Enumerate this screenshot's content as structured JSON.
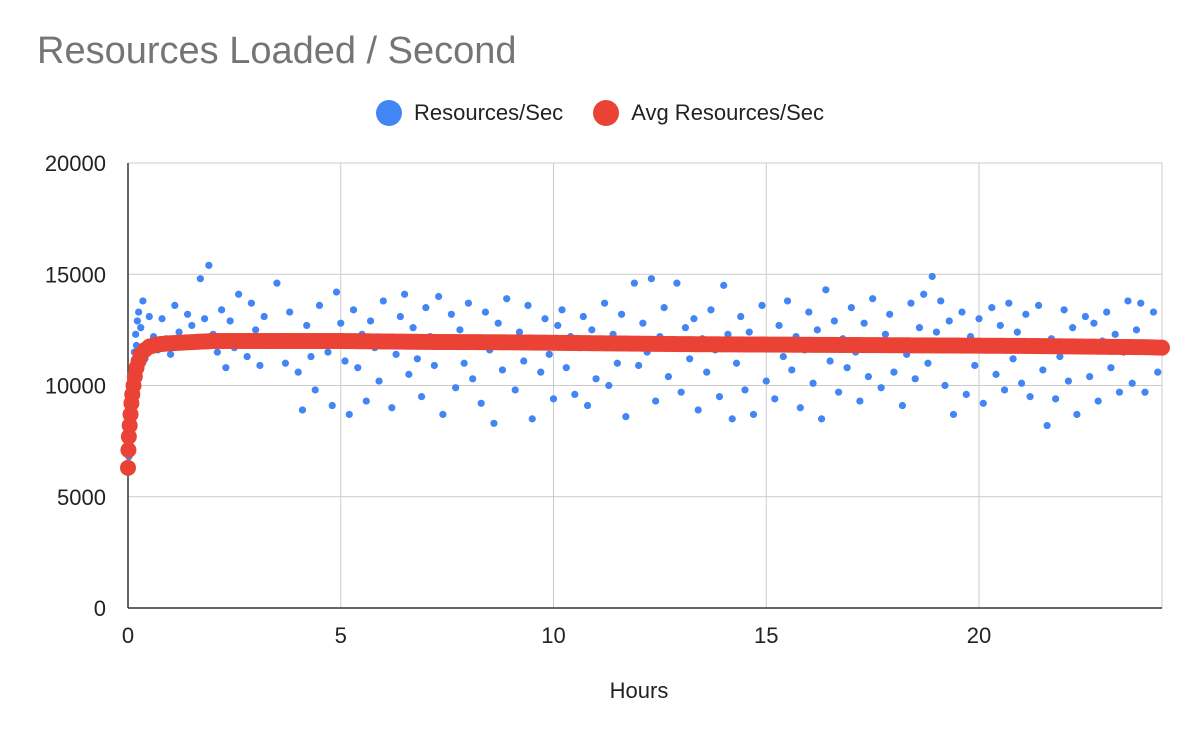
{
  "chart_data": {
    "type": "scatter",
    "title": "Resources Loaded / Second",
    "xlabel": "Hours",
    "ylabel": "",
    "xlim": [
      0,
      24.3
    ],
    "ylim": [
      0,
      20000
    ],
    "x_ticks": [
      0,
      5,
      10,
      15,
      20
    ],
    "y_ticks": [
      0,
      5000,
      10000,
      15000,
      20000
    ],
    "grid": true,
    "legend_position": "top",
    "series": [
      {
        "name": "Resources/Sec",
        "color": "#4285F4",
        "points": [
          [
            0.02,
            6800
          ],
          [
            0.05,
            8200
          ],
          [
            0.08,
            8900
          ],
          [
            0.1,
            9800
          ],
          [
            0.12,
            10400
          ],
          [
            0.15,
            11500
          ],
          [
            0.18,
            12300
          ],
          [
            0.2,
            11800
          ],
          [
            0.22,
            12900
          ],
          [
            0.25,
            13300
          ],
          [
            0.3,
            12600
          ],
          [
            0.35,
            13800
          ],
          [
            0.4,
            11200
          ],
          [
            0.5,
            13100
          ],
          [
            0.6,
            12200
          ],
          [
            0.7,
            11600
          ],
          [
            0.8,
            13000
          ],
          [
            0.9,
            12100
          ],
          [
            1.0,
            11400
          ],
          [
            1.1,
            13600
          ],
          [
            1.2,
            12400
          ],
          [
            1.3,
            11900
          ],
          [
            1.4,
            13200
          ],
          [
            1.5,
            12700
          ],
          [
            1.6,
            11800
          ],
          [
            1.7,
            14800
          ],
          [
            1.8,
            13000
          ],
          [
            1.9,
            15400
          ],
          [
            2.0,
            12300
          ],
          [
            2.1,
            11500
          ],
          [
            2.2,
            13400
          ],
          [
            2.3,
            10800
          ],
          [
            2.4,
            12900
          ],
          [
            2.5,
            11700
          ],
          [
            2.6,
            14100
          ],
          [
            2.7,
            12000
          ],
          [
            2.8,
            11300
          ],
          [
            2.9,
            13700
          ],
          [
            3.0,
            12500
          ],
          [
            3.1,
            10900
          ],
          [
            3.2,
            13100
          ],
          [
            3.3,
            11800
          ],
          [
            3.5,
            14600
          ],
          [
            3.6,
            12200
          ],
          [
            3.7,
            11000
          ],
          [
            3.8,
            13300
          ],
          [
            3.9,
            12000
          ],
          [
            4.0,
            10600
          ],
          [
            4.1,
            8900
          ],
          [
            4.2,
            12700
          ],
          [
            4.3,
            11300
          ],
          [
            4.4,
            9800
          ],
          [
            4.5,
            13600
          ],
          [
            4.6,
            12100
          ],
          [
            4.7,
            11500
          ],
          [
            4.8,
            9100
          ],
          [
            4.9,
            14200
          ],
          [
            5.0,
            12800
          ],
          [
            5.1,
            11100
          ],
          [
            5.2,
            8700
          ],
          [
            5.3,
            13400
          ],
          [
            5.4,
            10800
          ],
          [
            5.5,
            12300
          ],
          [
            5.6,
            9300
          ],
          [
            5.7,
            12900
          ],
          [
            5.8,
            11700
          ],
          [
            5.9,
            10200
          ],
          [
            6.0,
            13800
          ],
          [
            6.1,
            12000
          ],
          [
            6.2,
            9000
          ],
          [
            6.3,
            11400
          ],
          [
            6.4,
            13100
          ],
          [
            6.5,
            14100
          ],
          [
            6.6,
            10500
          ],
          [
            6.7,
            12600
          ],
          [
            6.8,
            11200
          ],
          [
            6.9,
            9500
          ],
          [
            7.0,
            13500
          ],
          [
            7.1,
            12200
          ],
          [
            7.2,
            10900
          ],
          [
            7.3,
            14000
          ],
          [
            7.4,
            8700
          ],
          [
            7.5,
            11800
          ],
          [
            7.6,
            13200
          ],
          [
            7.7,
            9900
          ],
          [
            7.8,
            12500
          ],
          [
            7.9,
            11000
          ],
          [
            8.0,
            13700
          ],
          [
            8.1,
            10300
          ],
          [
            8.2,
            12100
          ],
          [
            8.3,
            9200
          ],
          [
            8.4,
            13300
          ],
          [
            8.5,
            11600
          ],
          [
            8.6,
            8300
          ],
          [
            8.7,
            12800
          ],
          [
            8.8,
            10700
          ],
          [
            8.9,
            13900
          ],
          [
            9.0,
            11900
          ],
          [
            9.1,
            9800
          ],
          [
            9.2,
            12400
          ],
          [
            9.3,
            11100
          ],
          [
            9.4,
            13600
          ],
          [
            9.5,
            8500
          ],
          [
            9.6,
            12000
          ],
          [
            9.7,
            10600
          ],
          [
            9.8,
            13000
          ],
          [
            9.9,
            11400
          ],
          [
            10.0,
            9400
          ],
          [
            10.1,
            12700
          ],
          [
            10.2,
            13400
          ],
          [
            10.3,
            10800
          ],
          [
            10.4,
            12200
          ],
          [
            10.5,
            9600
          ],
          [
            10.6,
            11700
          ],
          [
            10.7,
            13100
          ],
          [
            10.8,
            9100
          ],
          [
            10.9,
            12500
          ],
          [
            11.0,
            10300
          ],
          [
            11.1,
            11900
          ],
          [
            11.2,
            13700
          ],
          [
            11.3,
            10000
          ],
          [
            11.4,
            12300
          ],
          [
            11.5,
            11000
          ],
          [
            11.6,
            13200
          ],
          [
            11.7,
            8600
          ],
          [
            11.8,
            12000
          ],
          [
            11.9,
            14600
          ],
          [
            12.0,
            10900
          ],
          [
            12.1,
            12800
          ],
          [
            12.2,
            11500
          ],
          [
            12.3,
            14800
          ],
          [
            12.4,
            9300
          ],
          [
            12.5,
            12200
          ],
          [
            12.6,
            13500
          ],
          [
            12.7,
            10400
          ],
          [
            12.8,
            11800
          ],
          [
            12.9,
            14600
          ],
          [
            13.0,
            9700
          ],
          [
            13.1,
            12600
          ],
          [
            13.2,
            11200
          ],
          [
            13.3,
            13000
          ],
          [
            13.4,
            8900
          ],
          [
            13.5,
            12100
          ],
          [
            13.6,
            10600
          ],
          [
            13.7,
            13400
          ],
          [
            13.8,
            11600
          ],
          [
            13.9,
            9500
          ],
          [
            14.0,
            14500
          ],
          [
            14.1,
            12300
          ],
          [
            14.2,
            8500
          ],
          [
            14.3,
            11000
          ],
          [
            14.4,
            13100
          ],
          [
            14.5,
            9800
          ],
          [
            14.6,
            12400
          ],
          [
            14.7,
            8700
          ],
          [
            14.8,
            11800
          ],
          [
            14.9,
            13600
          ],
          [
            15.0,
            10200
          ],
          [
            15.1,
            12000
          ],
          [
            15.2,
            9400
          ],
          [
            15.3,
            12700
          ],
          [
            15.4,
            11300
          ],
          [
            15.5,
            13800
          ],
          [
            15.6,
            10700
          ],
          [
            15.7,
            12200
          ],
          [
            15.8,
            9000
          ],
          [
            15.9,
            11600
          ],
          [
            16.0,
            13300
          ],
          [
            16.1,
            10100
          ],
          [
            16.2,
            12500
          ],
          [
            16.3,
            8500
          ],
          [
            16.4,
            14300
          ],
          [
            16.5,
            11100
          ],
          [
            16.6,
            12900
          ],
          [
            16.7,
            9700
          ],
          [
            16.8,
            12100
          ],
          [
            16.9,
            10800
          ],
          [
            17.0,
            13500
          ],
          [
            17.1,
            11500
          ],
          [
            17.2,
            9300
          ],
          [
            17.3,
            12800
          ],
          [
            17.4,
            10400
          ],
          [
            17.5,
            13900
          ],
          [
            17.6,
            11900
          ],
          [
            17.7,
            9900
          ],
          [
            17.8,
            12300
          ],
          [
            17.9,
            13200
          ],
          [
            18.0,
            10600
          ],
          [
            18.1,
            12000
          ],
          [
            18.2,
            9100
          ],
          [
            18.3,
            11400
          ],
          [
            18.4,
            13700
          ],
          [
            18.5,
            10300
          ],
          [
            18.6,
            12600
          ],
          [
            18.7,
            14100
          ],
          [
            18.8,
            11000
          ],
          [
            18.9,
            14900
          ],
          [
            19.0,
            12400
          ],
          [
            19.1,
            13800
          ],
          [
            19.2,
            10000
          ],
          [
            19.3,
            12900
          ],
          [
            19.4,
            8700
          ],
          [
            19.5,
            11700
          ],
          [
            19.6,
            13300
          ],
          [
            19.7,
            9600
          ],
          [
            19.8,
            12200
          ],
          [
            19.9,
            10900
          ],
          [
            20.0,
            13000
          ],
          [
            20.1,
            9200
          ],
          [
            20.2,
            11800
          ],
          [
            20.3,
            13500
          ],
          [
            20.4,
            10500
          ],
          [
            20.5,
            12700
          ],
          [
            20.6,
            9800
          ],
          [
            20.7,
            13700
          ],
          [
            20.8,
            11200
          ],
          [
            20.9,
            12400
          ],
          [
            21.0,
            10100
          ],
          [
            21.1,
            13200
          ],
          [
            21.2,
            9500
          ],
          [
            21.3,
            11900
          ],
          [
            21.4,
            13600
          ],
          [
            21.5,
            10700
          ],
          [
            21.6,
            8200
          ],
          [
            21.7,
            12100
          ],
          [
            21.8,
            9400
          ],
          [
            21.9,
            11300
          ],
          [
            22.0,
            13400
          ],
          [
            22.1,
            10200
          ],
          [
            22.2,
            12600
          ],
          [
            22.3,
            8700
          ],
          [
            22.4,
            11600
          ],
          [
            22.5,
            13100
          ],
          [
            22.6,
            10400
          ],
          [
            22.7,
            12800
          ],
          [
            22.8,
            9300
          ],
          [
            22.9,
            12000
          ],
          [
            23.0,
            13300
          ],
          [
            23.1,
            10800
          ],
          [
            23.2,
            12300
          ],
          [
            23.3,
            9700
          ],
          [
            23.4,
            11500
          ],
          [
            23.5,
            13800
          ],
          [
            23.6,
            10100
          ],
          [
            23.7,
            12500
          ],
          [
            23.8,
            13700
          ],
          [
            23.9,
            9700
          ],
          [
            24.0,
            11700
          ],
          [
            24.1,
            13300
          ],
          [
            24.2,
            10600
          ]
        ]
      },
      {
        "name": "Avg Resources/Sec",
        "color": "#EA4335",
        "points": [
          [
            0.0,
            6300
          ],
          [
            0.01,
            7100
          ],
          [
            0.02,
            7700
          ],
          [
            0.04,
            8200
          ],
          [
            0.06,
            8700
          ],
          [
            0.08,
            9200
          ],
          [
            0.1,
            9600
          ],
          [
            0.13,
            10000
          ],
          [
            0.16,
            10400
          ],
          [
            0.2,
            10800
          ],
          [
            0.25,
            11100
          ],
          [
            0.3,
            11400
          ],
          [
            0.4,
            11600
          ],
          [
            0.5,
            11750
          ],
          [
            0.7,
            11850
          ],
          [
            1.0,
            11900
          ],
          [
            1.5,
            11950
          ],
          [
            2.0,
            12000
          ],
          [
            3.0,
            12000
          ],
          [
            4.0,
            12000
          ],
          [
            5.0,
            12000
          ],
          [
            6.0,
            11980
          ],
          [
            7.0,
            11960
          ],
          [
            8.0,
            11950
          ],
          [
            9.0,
            11940
          ],
          [
            10.0,
            11920
          ],
          [
            11.0,
            11900
          ],
          [
            12.0,
            11880
          ],
          [
            13.0,
            11860
          ],
          [
            14.0,
            11850
          ],
          [
            15.0,
            11840
          ],
          [
            16.0,
            11830
          ],
          [
            17.0,
            11820
          ],
          [
            18.0,
            11810
          ],
          [
            19.0,
            11800
          ],
          [
            20.0,
            11790
          ],
          [
            21.0,
            11780
          ],
          [
            22.0,
            11760
          ],
          [
            23.0,
            11740
          ],
          [
            24.0,
            11720
          ],
          [
            24.3,
            11700
          ]
        ]
      }
    ]
  }
}
